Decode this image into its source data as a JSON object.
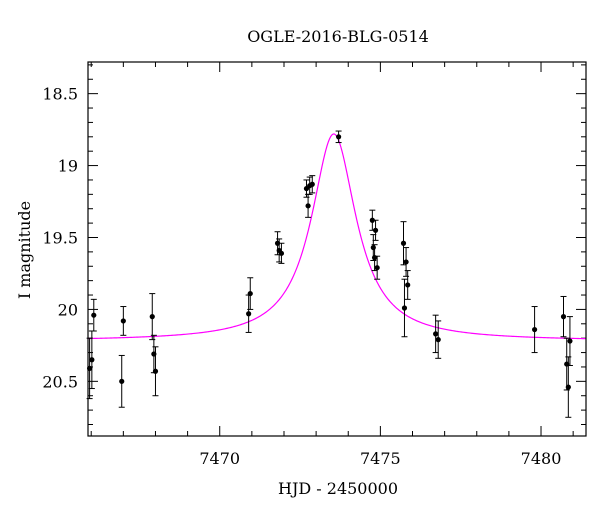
{
  "chart_data": {
    "type": "scatter",
    "title": "OGLE-2016-BLG-0514",
    "xlabel": "HJD - 2450000",
    "ylabel": "I magnitude",
    "xlim": [
      7465.9,
      7481.4
    ],
    "ylim": [
      20.88,
      18.28
    ],
    "y_inverted": true,
    "x_ticks": [
      7470,
      7475,
      7480
    ],
    "x_tick_labels": [
      "7470",
      "7475",
      "7480"
    ],
    "y_ticks": [
      18.5,
      19,
      19.5,
      20,
      20.5
    ],
    "y_tick_labels": [
      "18.5",
      "19",
      "19.5",
      "20",
      "20.5"
    ],
    "grid": false,
    "colors": {
      "points": "#000000",
      "model": "#ff00ff"
    },
    "series": [
      {
        "type": "scatter",
        "points": [
          {
            "x": 7465.95,
            "y": 20.41,
            "err": 0.21
          },
          {
            "x": 7466.02,
            "y": 20.35,
            "err": 0.2
          },
          {
            "x": 7466.08,
            "y": 20.04,
            "err": 0.11
          },
          {
            "x": 7466.95,
            "y": 20.5,
            "err": 0.18
          },
          {
            "x": 7467.0,
            "y": 20.08,
            "err": 0.1
          },
          {
            "x": 7467.9,
            "y": 20.05,
            "err": 0.16
          },
          {
            "x": 7467.95,
            "y": 20.31,
            "err": 0.13
          },
          {
            "x": 7468.0,
            "y": 20.43,
            "err": 0.17
          },
          {
            "x": 7470.9,
            "y": 20.03,
            "err": 0.13
          },
          {
            "x": 7470.95,
            "y": 19.89,
            "err": 0.11
          },
          {
            "x": 7471.8,
            "y": 19.54,
            "err": 0.08
          },
          {
            "x": 7471.85,
            "y": 19.59,
            "err": 0.08
          },
          {
            "x": 7471.92,
            "y": 19.61,
            "err": 0.07
          },
          {
            "x": 7472.7,
            "y": 19.16,
            "err": 0.06
          },
          {
            "x": 7472.75,
            "y": 19.28,
            "err": 0.08
          },
          {
            "x": 7472.8,
            "y": 19.14,
            "err": 0.06
          },
          {
            "x": 7472.88,
            "y": 19.13,
            "err": 0.06
          },
          {
            "x": 7473.7,
            "y": 18.8,
            "err": 0.04
          },
          {
            "x": 7474.75,
            "y": 19.38,
            "err": 0.07
          },
          {
            "x": 7474.78,
            "y": 19.57,
            "err": 0.09
          },
          {
            "x": 7474.82,
            "y": 19.64,
            "err": 0.09
          },
          {
            "x": 7474.85,
            "y": 19.45,
            "err": 0.07
          },
          {
            "x": 7474.9,
            "y": 19.71,
            "err": 0.08
          },
          {
            "x": 7475.72,
            "y": 19.54,
            "err": 0.15
          },
          {
            "x": 7475.75,
            "y": 19.99,
            "err": 0.2
          },
          {
            "x": 7475.8,
            "y": 19.67,
            "err": 0.1
          },
          {
            "x": 7475.85,
            "y": 19.83,
            "err": 0.1
          },
          {
            "x": 7476.72,
            "y": 20.17,
            "err": 0.13
          },
          {
            "x": 7476.8,
            "y": 20.21,
            "err": 0.13
          },
          {
            "x": 7479.8,
            "y": 20.14,
            "err": 0.16
          },
          {
            "x": 7480.7,
            "y": 20.05,
            "err": 0.14
          },
          {
            "x": 7480.8,
            "y": 20.38,
            "err": 0.18
          },
          {
            "x": 7480.85,
            "y": 20.54,
            "err": 0.21
          },
          {
            "x": 7480.9,
            "y": 20.22,
            "err": 0.17
          }
        ]
      },
      {
        "type": "line",
        "t0": 7473.55,
        "peak_mag": 18.78,
        "baseline_mag": 20.22,
        "half_width": 0.85
      }
    ]
  }
}
